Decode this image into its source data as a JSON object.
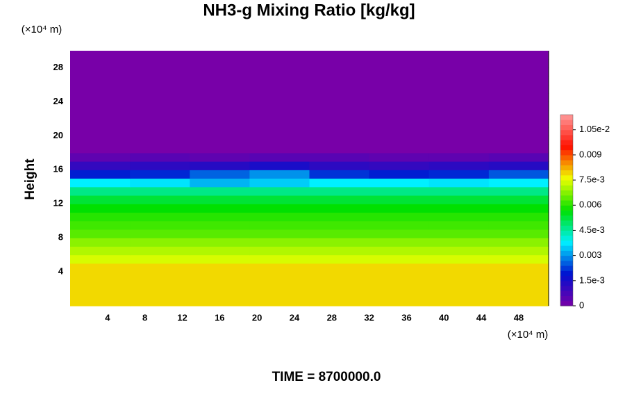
{
  "chart_data": {
    "type": "heatmap",
    "title": "NH3-g Mixing Ratio [kg/kg]",
    "ylabel": "Height",
    "x_unit": "(×10⁴ m)",
    "y_unit": "(×10⁴ m)",
    "footer": "TIME = 8700000.0",
    "xlim": [
      0,
      51.2
    ],
    "ylim": [
      0,
      30
    ],
    "xticks": [
      4,
      8,
      12,
      16,
      20,
      24,
      28,
      32,
      36,
      40,
      44,
      48
    ],
    "yticks": [
      4,
      8,
      12,
      16,
      20,
      24,
      28
    ],
    "clim": [
      0,
      0.0114
    ],
    "cticks": [
      0,
      {
        "value": 0.0015,
        "label": "1.5e-3"
      },
      0.003,
      {
        "value": 0.0045,
        "label": "4.5e-3"
      },
      0.006,
      {
        "value": 0.0075,
        "label": "7.5e-3"
      },
      0.009,
      {
        "value": 0.0105,
        "label": "1.05e-2"
      }
    ],
    "colormap": [
      "#7800a8",
      "#0010d0",
      "#00f0ff",
      "#00e000",
      "#f0ff00",
      "#ff1000",
      "#ff9a9a"
    ],
    "x": [
      3.2,
      9.6,
      16,
      22.4,
      28.8,
      35.2,
      41.6,
      48
    ],
    "y": [
      0.5,
      1.5,
      2.5,
      3.5,
      4.5,
      5.5,
      6.5,
      7.5,
      8.5,
      9.5,
      10.5,
      11.5,
      12.5,
      13.5,
      14.5,
      15.5,
      16.5,
      17.5,
      18.5,
      19.5,
      20.5,
      21.5,
      22.5,
      23.5,
      24.5,
      25.5,
      26.5,
      27.5,
      28.5,
      29.5
    ],
    "z": [
      [
        0.0079,
        0.0079,
        0.0079,
        0.0079,
        0.0079,
        0.0079,
        0.0079,
        0.0079
      ],
      [
        0.0079,
        0.0079,
        0.0079,
        0.0079,
        0.0079,
        0.0079,
        0.0079,
        0.0079
      ],
      [
        0.0079,
        0.0079,
        0.0079,
        0.0079,
        0.0079,
        0.0079,
        0.0079,
        0.0079
      ],
      [
        0.0079,
        0.0079,
        0.0079,
        0.0079,
        0.0079,
        0.0079,
        0.0079,
        0.0079
      ],
      [
        0.0079,
        0.0079,
        0.0079,
        0.0079,
        0.0079,
        0.0079,
        0.0079,
        0.0079
      ],
      [
        0.0074,
        0.0074,
        0.0074,
        0.0074,
        0.0074,
        0.0074,
        0.0074,
        0.0074
      ],
      [
        0.0071,
        0.0071,
        0.0071,
        0.0071,
        0.0071,
        0.0071,
        0.0071,
        0.0071
      ],
      [
        0.0068,
        0.0068,
        0.0068,
        0.0068,
        0.0068,
        0.0068,
        0.0068,
        0.0068
      ],
      [
        0.0064,
        0.0064,
        0.0064,
        0.0064,
        0.0064,
        0.0064,
        0.0064,
        0.0064
      ],
      [
        0.0062,
        0.0062,
        0.0062,
        0.0062,
        0.0062,
        0.0062,
        0.0062,
        0.0062
      ],
      [
        0.006,
        0.006,
        0.006,
        0.006,
        0.006,
        0.006,
        0.006,
        0.006
      ],
      [
        0.0057,
        0.0057,
        0.0057,
        0.0057,
        0.0057,
        0.0057,
        0.0057,
        0.0057
      ],
      [
        0.0053,
        0.0053,
        0.0053,
        0.0053,
        0.0053,
        0.0053,
        0.0053,
        0.0053
      ],
      [
        0.0047,
        0.0047,
        0.0047,
        0.0047,
        0.0047,
        0.0047,
        0.0047,
        0.0047
      ],
      [
        0.0038,
        0.0037,
        0.0033,
        0.0035,
        0.0038,
        0.0038,
        0.0037,
        0.0038
      ],
      [
        0.002,
        0.0021,
        0.0026,
        0.003,
        0.0022,
        0.002,
        0.0021,
        0.0025
      ],
      [
        0.0011,
        0.0012,
        0.0013,
        0.0015,
        0.0012,
        0.0011,
        0.0012,
        0.0013
      ],
      [
        0.0004,
        0.0005,
        0.0004,
        0.0005,
        0.0005,
        0.0004,
        0.0004,
        0.0005
      ],
      [
        0,
        0,
        0,
        0,
        0,
        0,
        0,
        0
      ],
      [
        0,
        0,
        0,
        0,
        0,
        0,
        0,
        0
      ],
      [
        0,
        0,
        0,
        0,
        0,
        0,
        0,
        0
      ],
      [
        0,
        0,
        0,
        0,
        0,
        0,
        0,
        0
      ],
      [
        0,
        0,
        0,
        0,
        0,
        0,
        0,
        0
      ],
      [
        0,
        0,
        0,
        0,
        0,
        0,
        0,
        0
      ],
      [
        0,
        0,
        0,
        0,
        0,
        0,
        0,
        0
      ],
      [
        0,
        0,
        0,
        0,
        0,
        0,
        0,
        0
      ],
      [
        0,
        0,
        0,
        0,
        0,
        0,
        0,
        0
      ],
      [
        0,
        0,
        0,
        0,
        0,
        0,
        0,
        0
      ],
      [
        0,
        0,
        0,
        0,
        0,
        0,
        0,
        0
      ],
      [
        0,
        0,
        0,
        0,
        0,
        0,
        0,
        0
      ]
    ]
  }
}
